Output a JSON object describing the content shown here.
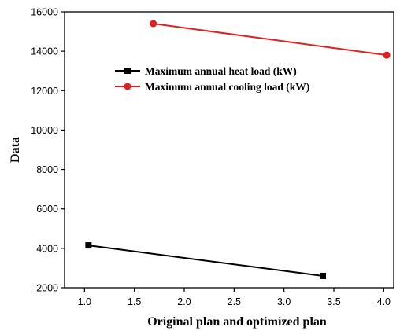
{
  "chart_data": {
    "type": "line",
    "xlabel": "Original plan and optimized plan",
    "ylabel": "Data",
    "xlim": [
      0.8,
      4.1
    ],
    "ylim": [
      2000,
      16000
    ],
    "xticks": [
      "1.0",
      "1.5",
      "2.0",
      "2.5",
      "3.0",
      "3.5",
      "4.0"
    ],
    "yticks": [
      "2000",
      "4000",
      "6000",
      "8000",
      "10000",
      "12000",
      "14000",
      "16000"
    ],
    "legend_position": "upper-left-inside",
    "grid": false,
    "series": [
      {
        "name": "Maximum annual heat load (kW)",
        "color": "#000000",
        "marker": "square",
        "points": [
          {
            "x": 1.04,
            "y": 4150
          },
          {
            "x": 3.39,
            "y": 2600
          }
        ]
      },
      {
        "name": "Maximum annual cooling load (kW)",
        "color": "#e02020",
        "marker": "circle",
        "points": [
          {
            "x": 1.69,
            "y": 15400
          },
          {
            "x": 4.03,
            "y": 13800
          }
        ]
      }
    ]
  }
}
